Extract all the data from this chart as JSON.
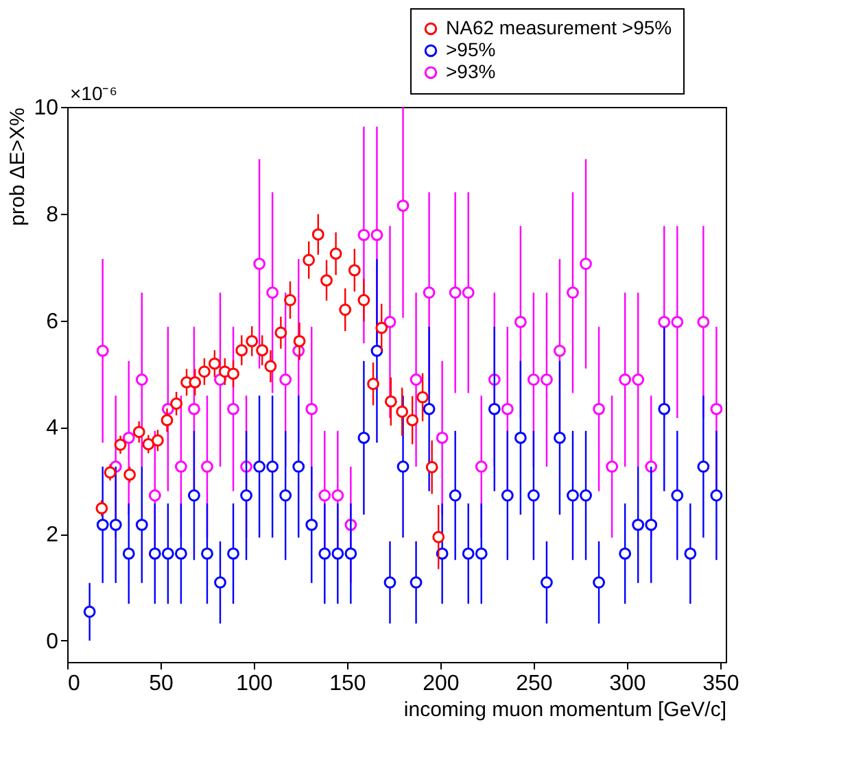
{
  "chart_data": {
    "type": "scatter",
    "xlabel": "incoming muon momentum [GeV/c]",
    "ylabel": "prob ΔE>X%",
    "annotations": [
      "×10⁻⁶"
    ],
    "xlim": [
      0,
      353
    ],
    "xticks": [
      0,
      50,
      100,
      150,
      200,
      250,
      300,
      350
    ],
    "ylim": [
      -0.4,
      10
    ],
    "yticks": [
      0,
      2,
      4,
      6,
      8,
      10
    ],
    "grid": false,
    "legend": "top right",
    "marker": "circle",
    "series": [
      {
        "name": "NA62 measurement >95%",
        "color": "#ff0000",
        "x": [
          18.5,
          23,
          28.5,
          33.5,
          38.5,
          43.5,
          48.5,
          53.5,
          58.5,
          64,
          68.5,
          73.5,
          79,
          84.5,
          89,
          93.5,
          99,
          104.5,
          109,
          114.5,
          119.5,
          124.5,
          129.5,
          134.5,
          139,
          144,
          149,
          154,
          159,
          164,
          168.5,
          173.5,
          179.5,
          185,
          190.5,
          195.5,
          199
        ],
        "values": [
          2.48,
          3.15,
          3.67,
          3.11,
          3.91,
          3.68,
          3.75,
          4.13,
          4.44,
          4.84,
          4.84,
          5.04,
          5.19,
          5.04,
          5.0,
          5.44,
          5.61,
          5.44,
          5.14,
          5.77,
          6.38,
          5.61,
          7.13,
          7.61,
          6.75,
          7.25,
          6.2,
          6.94,
          6.38,
          4.81,
          5.86,
          4.48,
          4.29,
          4.13,
          4.56,
          3.25,
          1.94
        ],
        "errors": [
          0.15,
          0.15,
          0.17,
          0.15,
          0.2,
          0.17,
          0.2,
          0.22,
          0.22,
          0.25,
          0.25,
          0.25,
          0.25,
          0.25,
          0.25,
          0.28,
          0.28,
          0.28,
          0.3,
          0.3,
          0.35,
          0.35,
          0.35,
          0.38,
          0.38,
          0.4,
          0.4,
          0.4,
          0.4,
          0.4,
          0.45,
          0.45,
          0.45,
          0.45,
          0.45,
          0.5,
          0.6
        ]
      },
      {
        "name": ">95%",
        "color": "#0000ff",
        "x": [
          12,
          19,
          26,
          33,
          40,
          47,
          54,
          61,
          68,
          75,
          82,
          89,
          96,
          103,
          110,
          117,
          124,
          131,
          138,
          145,
          152,
          159,
          166,
          173,
          180,
          187,
          194,
          201,
          208,
          215,
          222,
          229,
          236,
          243,
          250,
          257,
          264,
          271,
          278,
          285,
          299,
          306,
          313,
          320,
          327,
          334,
          341,
          348
        ],
        "values": [
          0.54,
          2.17,
          2.17,
          1.63,
          2.17,
          1.63,
          1.63,
          1.63,
          2.72,
          1.63,
          1.09,
          1.63,
          2.72,
          3.26,
          3.26,
          2.72,
          3.26,
          2.17,
          1.63,
          1.63,
          1.63,
          3.8,
          5.43,
          1.09,
          3.26,
          1.09,
          4.34,
          1.63,
          2.72,
          1.63,
          1.63,
          4.34,
          2.72,
          3.8,
          2.72,
          1.09,
          3.8,
          2.72,
          2.72,
          1.09,
          1.63,
          2.17,
          2.17,
          4.34,
          2.72,
          1.63,
          3.26,
          2.72
        ],
        "errors": [
          0.54,
          1.09,
          1.09,
          0.94,
          1.09,
          0.94,
          0.94,
          0.94,
          1.21,
          0.94,
          0.77,
          0.94,
          1.21,
          1.33,
          1.33,
          1.21,
          1.33,
          1.09,
          0.94,
          0.94,
          0.94,
          1.44,
          1.72,
          0.77,
          1.33,
          0.77,
          1.54,
          0.94,
          1.21,
          0.94,
          0.94,
          1.54,
          1.21,
          1.44,
          1.21,
          0.77,
          1.44,
          1.21,
          1.21,
          0.77,
          0.94,
          1.09,
          1.09,
          1.54,
          1.21,
          0.94,
          1.33,
          1.21
        ]
      },
      {
        "name": ">93%",
        "color": "#ff00ff",
        "x": [
          19,
          26,
          33,
          40,
          47,
          54,
          61,
          68,
          75,
          82,
          89,
          96,
          103,
          110,
          117,
          124,
          131,
          138,
          145,
          152,
          159,
          166,
          173,
          180,
          187,
          194,
          201,
          208,
          215,
          222,
          229,
          236,
          243,
          250,
          257,
          264,
          271,
          278,
          285,
          292,
          299,
          306,
          313,
          320,
          327,
          341,
          348
        ],
        "values": [
          5.43,
          3.26,
          3.8,
          4.89,
          2.72,
          4.34,
          3.26,
          4.34,
          3.26,
          4.89,
          4.34,
          3.26,
          7.06,
          6.52,
          4.89,
          5.43,
          4.34,
          2.72,
          2.72,
          2.17,
          7.6,
          7.6,
          5.97,
          8.15,
          4.89,
          6.52,
          3.8,
          6.52,
          6.52,
          3.26,
          4.89,
          4.34,
          5.97,
          4.89,
          4.89,
          5.43,
          6.52,
          7.06,
          4.34,
          3.26,
          4.89,
          4.89,
          3.26,
          5.97,
          5.97,
          5.97,
          4.34
        ],
        "errors": [
          1.72,
          1.33,
          1.44,
          1.63,
          1.21,
          1.54,
          1.33,
          1.54,
          1.33,
          1.63,
          1.54,
          1.33,
          1.96,
          1.88,
          1.63,
          1.72,
          1.54,
          1.21,
          1.21,
          1.09,
          2.03,
          2.03,
          1.8,
          [
            6.05,
            10
          ],
          1.63,
          1.88,
          1.44,
          1.88,
          1.88,
          1.33,
          1.63,
          1.54,
          1.8,
          1.63,
          1.63,
          1.72,
          1.88,
          1.96,
          1.54,
          1.33,
          1.63,
          1.63,
          1.33,
          1.8,
          1.8,
          1.8,
          1.54
        ]
      }
    ]
  }
}
